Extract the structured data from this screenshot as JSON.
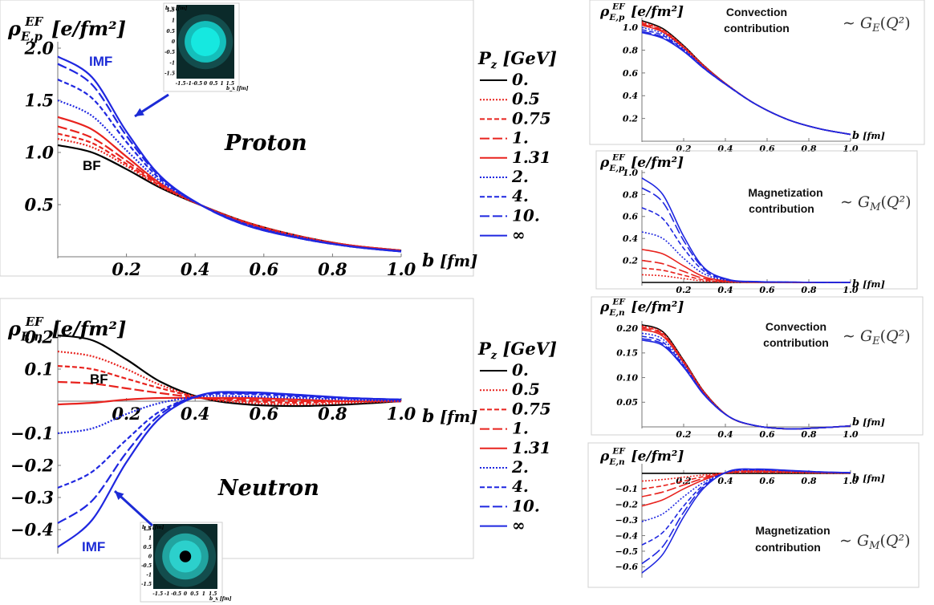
{
  "colors": {
    "black": "#000000",
    "red": "#e8231e",
    "blue": "#1f27e0",
    "annot": "#1c2bd6",
    "density_bg": "#0b2a2a",
    "density_core": "#16e8e0"
  },
  "legend": {
    "title_main": "P",
    "title_sub": "z",
    "title_unit": "[GeV]",
    "entries": [
      "0.",
      "0.5",
      "0.75",
      "1.",
      "1.31",
      "2.",
      "4.",
      "10.",
      "∞"
    ]
  },
  "chart_data": [
    {
      "id": "proton-main",
      "type": "line",
      "label": "Proton",
      "ylabel_main": "ρ",
      "ylabel_sup": "EF",
      "ylabel_sub": "E,p",
      "ylabel_unit": "[e/fm²]",
      "xlabel_main": "b",
      "xlabel_unit": "[fm]",
      "xlim": [
        0,
        1.0
      ],
      "ylim": [
        0,
        2.0
      ],
      "xticks": [
        0.2,
        0.4,
        0.6,
        0.8,
        1.0
      ],
      "xtick_labels": [
        "0.2",
        "0.4",
        "0.6",
        "0.8",
        "1.0"
      ],
      "yticks": [
        0.5,
        1.0,
        1.5,
        2.0
      ],
      "ytick_labels": [
        "0.5",
        "1.0",
        "1.5",
        "2.0"
      ],
      "annotations": [
        {
          "text": "IMF"
        },
        {
          "text": "BF"
        }
      ],
      "x": [
        0,
        0.1,
        0.2,
        0.3,
        0.42,
        0.55,
        0.7,
        0.85,
        1.0
      ],
      "series": [
        {
          "values": [
            1.07,
            1.0,
            0.84,
            0.66,
            0.49,
            0.33,
            0.2,
            0.11,
            0.06
          ]
        },
        {
          "values": [
            1.13,
            1.05,
            0.87,
            0.67,
            0.49,
            0.33,
            0.2,
            0.11,
            0.06
          ]
        },
        {
          "values": [
            1.18,
            1.09,
            0.89,
            0.68,
            0.49,
            0.33,
            0.2,
            0.11,
            0.06
          ]
        },
        {
          "values": [
            1.25,
            1.14,
            0.92,
            0.69,
            0.49,
            0.32,
            0.19,
            0.11,
            0.06
          ]
        },
        {
          "values": [
            1.34,
            1.22,
            0.96,
            0.7,
            0.49,
            0.32,
            0.19,
            0.11,
            0.055
          ]
        },
        {
          "values": [
            1.5,
            1.35,
            1.02,
            0.72,
            0.49,
            0.31,
            0.19,
            0.1,
            0.055
          ]
        },
        {
          "values": [
            1.7,
            1.52,
            1.1,
            0.74,
            0.49,
            0.31,
            0.18,
            0.1,
            0.05
          ]
        },
        {
          "values": [
            1.85,
            1.65,
            1.16,
            0.76,
            0.49,
            0.3,
            0.18,
            0.1,
            0.05
          ]
        },
        {
          "values": [
            1.92,
            1.72,
            1.2,
            0.77,
            0.49,
            0.3,
            0.18,
            0.1,
            0.05
          ]
        }
      ],
      "inset": {
        "ylabel": "b_y [fm]",
        "xlabel": "b_x [fm]",
        "ticks": [
          "-1.5",
          "-1",
          "-0.5",
          "0",
          "0.5",
          "1",
          "1.5"
        ]
      }
    },
    {
      "id": "neutron-main",
      "type": "line",
      "label": "Neutron",
      "ylabel_main": "ρ",
      "ylabel_sup": "EF",
      "ylabel_sub": "E,n",
      "ylabel_unit": "[e/fm²]",
      "xlabel_main": "b",
      "xlabel_unit": "[fm]",
      "xlim": [
        0,
        1.0
      ],
      "ylim": [
        -0.47,
        0.25
      ],
      "xticks": [
        0.2,
        0.4,
        0.6,
        0.8,
        1.0
      ],
      "xtick_labels": [
        "0.2",
        "0.4",
        "0.6",
        "0.8",
        "1.0"
      ],
      "yticks": [
        0.2,
        0.1,
        -0.1,
        -0.2,
        -0.3,
        -0.4
      ],
      "ytick_labels": [
        "0.2",
        "0.1",
        "−0.1",
        "−0.2",
        "−0.3",
        "−0.4"
      ],
      "annotations": [
        {
          "text": "BF"
        },
        {
          "text": "IMF"
        }
      ],
      "x": [
        0,
        0.1,
        0.2,
        0.3,
        0.42,
        0.55,
        0.7,
        0.85,
        1.0
      ],
      "series": [
        {
          "values": [
            0.205,
            0.19,
            0.13,
            0.06,
            0.01,
            -0.01,
            -0.015,
            -0.01,
            0.0
          ]
        },
        {
          "values": [
            0.155,
            0.14,
            0.1,
            0.05,
            0.01,
            -0.005,
            -0.01,
            -0.005,
            0.0
          ]
        },
        {
          "values": [
            0.11,
            0.1,
            0.07,
            0.04,
            0.01,
            0.0,
            -0.005,
            0.0,
            0.0
          ]
        },
        {
          "values": [
            0.06,
            0.055,
            0.04,
            0.025,
            0.01,
            0.005,
            0.0,
            0.0,
            0.0
          ]
        },
        {
          "values": [
            -0.01,
            -0.005,
            0.005,
            0.01,
            0.01,
            0.01,
            0.005,
            0.0,
            0.0
          ]
        },
        {
          "values": [
            -0.1,
            -0.085,
            -0.04,
            -0.005,
            0.015,
            0.015,
            0.01,
            0.005,
            0.0
          ]
        },
        {
          "values": [
            -0.27,
            -0.22,
            -0.12,
            -0.03,
            0.018,
            0.022,
            0.015,
            0.008,
            0.005
          ]
        },
        {
          "values": [
            -0.38,
            -0.31,
            -0.16,
            -0.04,
            0.02,
            0.025,
            0.018,
            0.01,
            0.005
          ]
        },
        {
          "values": [
            -0.455,
            -0.37,
            -0.19,
            -0.05,
            0.02,
            0.028,
            0.02,
            0.01,
            0.005
          ]
        }
      ],
      "inset": {
        "ylabel": "b_y [fm]",
        "xlabel": "b_x [fm]",
        "ticks": [
          "-1.5",
          "-1",
          "-0.5",
          "0",
          "0.5",
          "1",
          "1.5"
        ]
      }
    },
    {
      "id": "proton-convection",
      "type": "line",
      "ylabel_main": "ρ",
      "ylabel_sup": "EF",
      "ylabel_sub": "E,p",
      "ylabel_unit": "[e/fm²]",
      "xlabel_main": "b",
      "xlabel_unit": "[fm]",
      "annotation_line1": "Convection",
      "annotation_line2": "contribution",
      "formula": "∼ G_E(Q²)",
      "xlim": [
        0,
        1.0
      ],
      "ylim": [
        0,
        1.1
      ],
      "xticks": [
        0.2,
        0.4,
        0.6,
        0.8,
        1.0
      ],
      "xtick_labels": [
        "0.2",
        "0.4",
        "0.6",
        "0.8",
        "1.0"
      ],
      "yticks": [
        0.2,
        0.4,
        0.6,
        0.8,
        1.0
      ],
      "ytick_labels": [
        "0.2",
        "0.4",
        "0.6",
        "0.8",
        "1.0"
      ],
      "x": [
        0,
        0.1,
        0.2,
        0.3,
        0.42,
        0.55,
        0.7,
        0.85,
        1.0
      ],
      "series": [
        {
          "values": [
            1.06,
            0.99,
            0.84,
            0.66,
            0.48,
            0.32,
            0.19,
            0.11,
            0.06
          ]
        },
        {
          "values": [
            1.05,
            0.98,
            0.835,
            0.66,
            0.48,
            0.32,
            0.19,
            0.11,
            0.06
          ]
        },
        {
          "values": [
            1.04,
            0.975,
            0.83,
            0.655,
            0.48,
            0.32,
            0.19,
            0.11,
            0.06
          ]
        },
        {
          "values": [
            1.03,
            0.965,
            0.825,
            0.655,
            0.48,
            0.32,
            0.19,
            0.11,
            0.06
          ]
        },
        {
          "values": [
            1.02,
            0.96,
            0.82,
            0.65,
            0.48,
            0.32,
            0.19,
            0.11,
            0.06
          ]
        },
        {
          "values": [
            1.0,
            0.945,
            0.81,
            0.645,
            0.48,
            0.32,
            0.19,
            0.11,
            0.06
          ]
        },
        {
          "values": [
            0.98,
            0.93,
            0.8,
            0.64,
            0.475,
            0.32,
            0.19,
            0.11,
            0.06
          ]
        },
        {
          "values": [
            0.965,
            0.915,
            0.795,
            0.635,
            0.475,
            0.32,
            0.19,
            0.11,
            0.06
          ]
        },
        {
          "values": [
            0.955,
            0.905,
            0.79,
            0.635,
            0.475,
            0.32,
            0.19,
            0.11,
            0.06
          ]
        }
      ]
    },
    {
      "id": "proton-magnetization",
      "type": "line",
      "ylabel_main": "ρ",
      "ylabel_sup": "EF",
      "ylabel_sub": "E,p",
      "ylabel_unit": "[e/fm²]",
      "xlabel_main": "b",
      "xlabel_unit": "[fm]",
      "annotation_line1": "Magnetization",
      "annotation_line2": "contribution",
      "formula": "∼ G_M(Q²)",
      "xlim": [
        0,
        1.0
      ],
      "ylim": [
        0,
        1.0
      ],
      "xticks": [
        0.2,
        0.4,
        0.6,
        0.8,
        1.0
      ],
      "xtick_labels": [
        "0.2",
        "0.4",
        "0.6",
        "0.8",
        "1.0"
      ],
      "yticks": [
        0.2,
        0.4,
        0.6,
        0.8,
        1.0
      ],
      "ytick_labels": [
        "0.2",
        "0.4",
        "0.6",
        "0.8",
        "1.0"
      ],
      "x": [
        0,
        0.1,
        0.2,
        0.3,
        0.42,
        0.55,
        0.7,
        0.85,
        1.0
      ],
      "series": [
        {
          "values": [
            0.0,
            0.0,
            0.0,
            0.0,
            0.0,
            0.0,
            0.0,
            0.0,
            0.0
          ]
        },
        {
          "values": [
            0.07,
            0.06,
            0.035,
            0.012,
            0.003,
            0.001,
            0.0,
            0.0,
            0.0
          ]
        },
        {
          "values": [
            0.13,
            0.11,
            0.065,
            0.022,
            0.006,
            0.002,
            0.001,
            0.0,
            0.0
          ]
        },
        {
          "values": [
            0.2,
            0.17,
            0.1,
            0.035,
            0.009,
            0.003,
            0.001,
            0.0,
            0.0
          ]
        },
        {
          "values": [
            0.3,
            0.26,
            0.15,
            0.05,
            0.012,
            0.004,
            0.002,
            0.001,
            0.0
          ]
        },
        {
          "values": [
            0.46,
            0.4,
            0.22,
            0.075,
            0.015,
            0.005,
            0.002,
            0.001,
            0.0
          ]
        },
        {
          "values": [
            0.68,
            0.58,
            0.31,
            0.1,
            0.02,
            0.006,
            0.003,
            0.001,
            0.0
          ]
        },
        {
          "values": [
            0.86,
            0.73,
            0.38,
            0.12,
            0.022,
            0.007,
            0.003,
            0.001,
            0.0
          ]
        },
        {
          "values": [
            0.95,
            0.8,
            0.42,
            0.13,
            0.025,
            0.008,
            0.003,
            0.001,
            0.0
          ]
        }
      ]
    },
    {
      "id": "neutron-convection",
      "type": "line",
      "ylabel_main": "ρ",
      "ylabel_sup": "EF",
      "ylabel_sub": "E,n",
      "ylabel_unit": "[e/fm²]",
      "xlabel_main": "b",
      "xlabel_unit": "[fm]",
      "annotation_line1": "Convection",
      "annotation_line2": "contribution",
      "formula": "∼ G_E(Q²)",
      "xlim": [
        0,
        1.0
      ],
      "ylim": [
        0,
        0.21
      ],
      "xticks": [
        0.2,
        0.4,
        0.6,
        0.8,
        1.0
      ],
      "xtick_labels": [
        "0.2",
        "0.4",
        "0.6",
        "0.8",
        "1.0"
      ],
      "yticks": [
        0.05,
        0.1,
        0.15,
        0.2
      ],
      "ytick_labels": [
        "0.05",
        "0.10",
        "0.15",
        "0.20"
      ],
      "x": [
        0,
        0.1,
        0.2,
        0.3,
        0.42,
        0.55,
        0.7,
        0.85,
        1.0
      ],
      "series": [
        {
          "values": [
            0.207,
            0.193,
            0.135,
            0.07,
            0.02,
            0.002,
            -0.004,
            -0.002,
            0.002
          ]
        },
        {
          "values": [
            0.205,
            0.191,
            0.134,
            0.07,
            0.02,
            0.002,
            -0.004,
            -0.002,
            0.002
          ]
        },
        {
          "values": [
            0.203,
            0.189,
            0.133,
            0.069,
            0.02,
            0.002,
            -0.004,
            -0.002,
            0.002
          ]
        },
        {
          "values": [
            0.2,
            0.187,
            0.131,
            0.068,
            0.02,
            0.002,
            -0.004,
            -0.002,
            0.002
          ]
        },
        {
          "values": [
            0.197,
            0.184,
            0.13,
            0.067,
            0.02,
            0.002,
            -0.004,
            -0.002,
            0.002
          ]
        },
        {
          "values": [
            0.19,
            0.178,
            0.127,
            0.066,
            0.02,
            0.002,
            -0.004,
            -0.002,
            0.002
          ]
        },
        {
          "values": [
            0.184,
            0.172,
            0.124,
            0.065,
            0.02,
            0.002,
            -0.004,
            -0.002,
            0.002
          ]
        },
        {
          "values": [
            0.179,
            0.168,
            0.122,
            0.064,
            0.02,
            0.002,
            -0.004,
            -0.002,
            0.002
          ]
        },
        {
          "values": [
            0.176,
            0.165,
            0.121,
            0.064,
            0.02,
            0.002,
            -0.004,
            -0.002,
            0.002
          ]
        }
      ]
    },
    {
      "id": "neutron-magnetization",
      "type": "line",
      "ylabel_main": "ρ",
      "ylabel_sup": "EF",
      "ylabel_sub": "E,n",
      "ylabel_unit": "[e/fm²]",
      "xlabel_main": "b",
      "xlabel_unit": "[fm]",
      "annotation_line1": "Magnetization",
      "annotation_line2": "contribution",
      "formula": "∼ G_M(Q²)",
      "xlim": [
        0,
        1.0
      ],
      "ylim": [
        -0.66,
        0.02
      ],
      "xticks": [
        0.2,
        0.4,
        0.6,
        0.8,
        1.0
      ],
      "xtick_labels": [
        "0.2",
        "0.4",
        "0.6",
        "0.8",
        "1.0"
      ],
      "yticks": [
        -0.1,
        -0.2,
        -0.3,
        -0.4,
        -0.5,
        -0.6
      ],
      "ytick_labels": [
        "−0.1",
        "−0.2",
        "−0.3",
        "−0.4",
        "−0.5",
        "−0.6"
      ],
      "x": [
        0,
        0.1,
        0.2,
        0.3,
        0.42,
        0.55,
        0.7,
        0.85,
        1.0
      ],
      "series": [
        {
          "values": [
            0.0,
            0.0,
            0.0,
            0.0,
            0.0,
            0.0,
            0.0,
            0.0,
            0.0
          ]
        },
        {
          "values": [
            -0.05,
            -0.04,
            -0.025,
            -0.01,
            0.003,
            0.006,
            0.004,
            0.002,
            0.001
          ]
        },
        {
          "values": [
            -0.1,
            -0.08,
            -0.05,
            -0.02,
            0.005,
            0.01,
            0.007,
            0.003,
            0.002
          ]
        },
        {
          "values": [
            -0.15,
            -0.12,
            -0.075,
            -0.03,
            0.007,
            0.013,
            0.01,
            0.005,
            0.002
          ]
        },
        {
          "values": [
            -0.21,
            -0.17,
            -0.1,
            -0.04,
            0.009,
            0.017,
            0.012,
            0.006,
            0.003
          ]
        },
        {
          "values": [
            -0.31,
            -0.26,
            -0.15,
            -0.055,
            0.011,
            0.021,
            0.015,
            0.007,
            0.003
          ]
        },
        {
          "values": [
            -0.46,
            -0.38,
            -0.21,
            -0.07,
            0.013,
            0.024,
            0.017,
            0.008,
            0.004
          ]
        },
        {
          "values": [
            -0.58,
            -0.47,
            -0.25,
            -0.08,
            0.014,
            0.026,
            0.018,
            0.009,
            0.004
          ]
        },
        {
          "values": [
            -0.64,
            -0.52,
            -0.28,
            -0.09,
            0.015,
            0.027,
            0.019,
            0.009,
            0.004
          ]
        }
      ]
    }
  ]
}
